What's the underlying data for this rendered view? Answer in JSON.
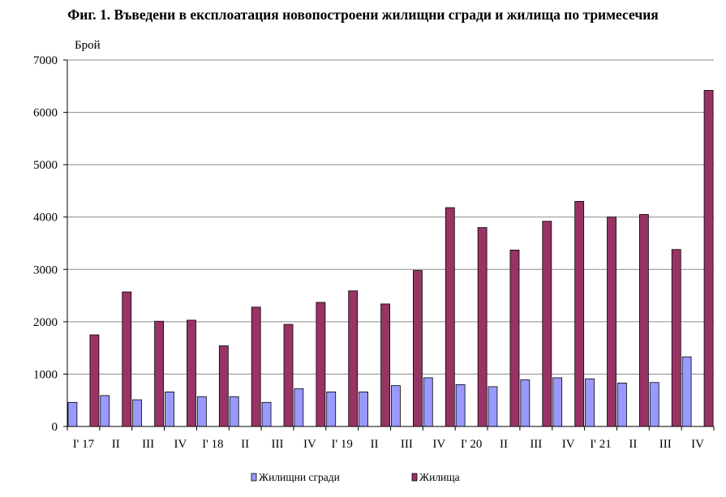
{
  "chart_data": {
    "type": "bar",
    "title": "Фиг. 1. Въведени в експлоатация новопостроени жилищни сгради и жилища по тримесечия",
    "ylabel": "Брой",
    "xlabel": "",
    "ylim": [
      0,
      7000
    ],
    "yticks": [
      0,
      1000,
      2000,
      3000,
      4000,
      5000,
      6000,
      7000
    ],
    "grid": true,
    "legend_position": "bottom",
    "categories": [
      "I' 17",
      "II",
      "III",
      "IV",
      "I' 18",
      "II",
      "III",
      "IV",
      "I' 19",
      "II",
      "III",
      "IV",
      "I' 20",
      "II",
      "III",
      "IV",
      "I' 21",
      "II",
      "III",
      "IV"
    ],
    "series": [
      {
        "name": "Жилищни сгради",
        "color": "#9999ff",
        "values": [
          460,
          590,
          510,
          660,
          570,
          570,
          460,
          720,
          660,
          660,
          780,
          930,
          800,
          760,
          890,
          930,
          910,
          830,
          840,
          1330
        ]
      },
      {
        "name": "Жилища",
        "color": "#993366",
        "values": [
          1750,
          2570,
          2010,
          2030,
          1540,
          2280,
          1950,
          2370,
          2590,
          2340,
          2980,
          4180,
          3800,
          3370,
          3920,
          4300,
          4000,
          4050,
          3380,
          6420
        ]
      }
    ]
  }
}
